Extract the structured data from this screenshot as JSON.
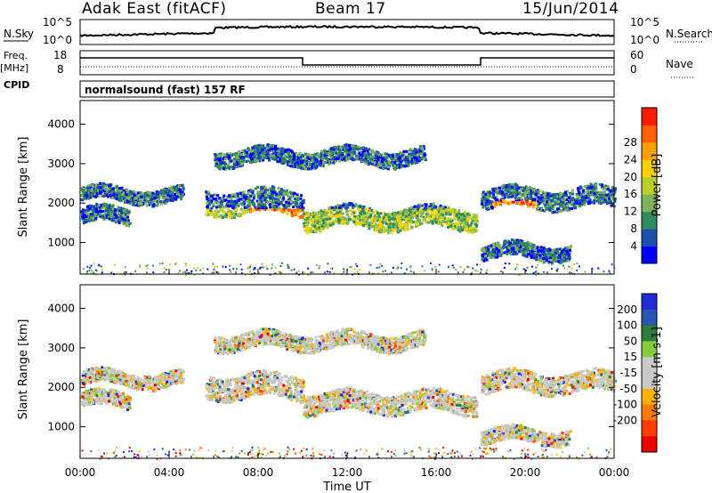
{
  "header": {
    "station": "Adak East (fitACF)",
    "beam": "Beam 17",
    "date": "15/Jun/2014"
  },
  "strips": {
    "nsky_label": "N.Sky",
    "nsearch_label": "N.Search",
    "noise_ticks": [
      "10^5",
      "10^0"
    ],
    "freq_label": "Freq.",
    "freq_unit": "[MHz]",
    "freq_ticks": [
      "18",
      "8"
    ],
    "nave_label": "Nave",
    "nave_ticks": [
      "60",
      "0"
    ],
    "cpid_label": "CPID",
    "cpid_text": "normalsound (fast) 157 RF"
  },
  "colors": {
    "power_scale": [
      "#0000ff",
      "#1c4fb0",
      "#2f8a5c",
      "#7fb25a",
      "#b8d12a",
      "#ffd000",
      "#ffa000",
      "#ff6000",
      "#ff1a00"
    ],
    "velocity_scale": [
      "#1f2bd6",
      "#2a55b0",
      "#2e7d3a",
      "#86cc3c",
      "#c9c9c9",
      "#c9c9c9",
      "#ffb300",
      "#ff7a00",
      "#ff3b00",
      "#ee0000"
    ]
  },
  "chart_data": [
    {
      "type": "heatmap",
      "panel": "power",
      "ylabel": "Slant Range [km]",
      "yticks": [
        1000,
        2000,
        3000,
        4000
      ],
      "ylim": [
        200,
        4600
      ],
      "xlim": [
        "00:00",
        "24:00"
      ],
      "colorbar_label": "Power [dB]",
      "colorbar_ticks": [
        "4",
        "8",
        "12",
        "16",
        "20",
        "24",
        "28"
      ]
    },
    {
      "type": "heatmap",
      "panel": "velocity",
      "ylabel": "Slant Range [km]",
      "yticks": [
        1000,
        2000,
        3000,
        4000
      ],
      "ylim": [
        200,
        4600
      ],
      "xlim": [
        "00:00",
        "24:00"
      ],
      "xlabel": "Time UT",
      "xtick_labels": [
        "00:00",
        "04:00",
        "08:00",
        "12:00",
        "16:00",
        "20:00",
        "00:00"
      ],
      "colorbar_label": "Velocity [m s-1]",
      "colorbar_ticks": [
        "200",
        "100",
        "50",
        "15",
        "-15",
        "-50",
        "-100",
        "-200"
      ]
    }
  ]
}
